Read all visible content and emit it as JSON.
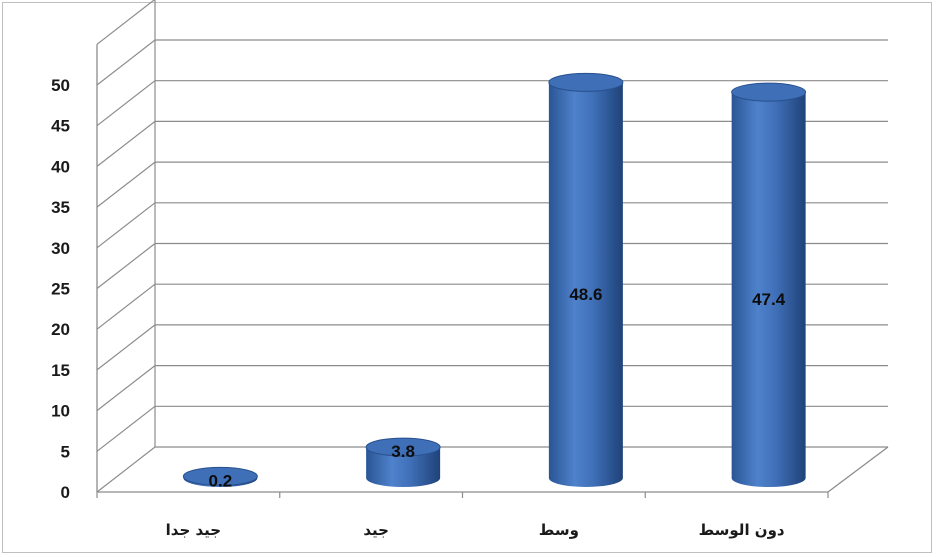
{
  "chart_data": {
    "type": "bar",
    "style": "3d-cylinder",
    "categories": [
      "جيد جدا",
      "جيد",
      "وسط",
      "دون الوسط"
    ],
    "values": [
      0.2,
      3.8,
      48.6,
      47.4
    ],
    "data_labels": [
      "0.2",
      "3.8",
      "48.6",
      "47.4"
    ],
    "title": "",
    "xlabel": "",
    "ylabel": "",
    "ylim": [
      0,
      50
    ],
    "yticks": [
      "0",
      "5",
      "10",
      "15",
      "20",
      "25",
      "30",
      "35",
      "40",
      "45",
      "50"
    ],
    "grid": true,
    "legend": "none",
    "colors": {
      "bar": "#3f6fb7",
      "bar_dark": "#27508f",
      "bar_light": "#7fa6dc",
      "grid": "#8c8c8c"
    }
  }
}
